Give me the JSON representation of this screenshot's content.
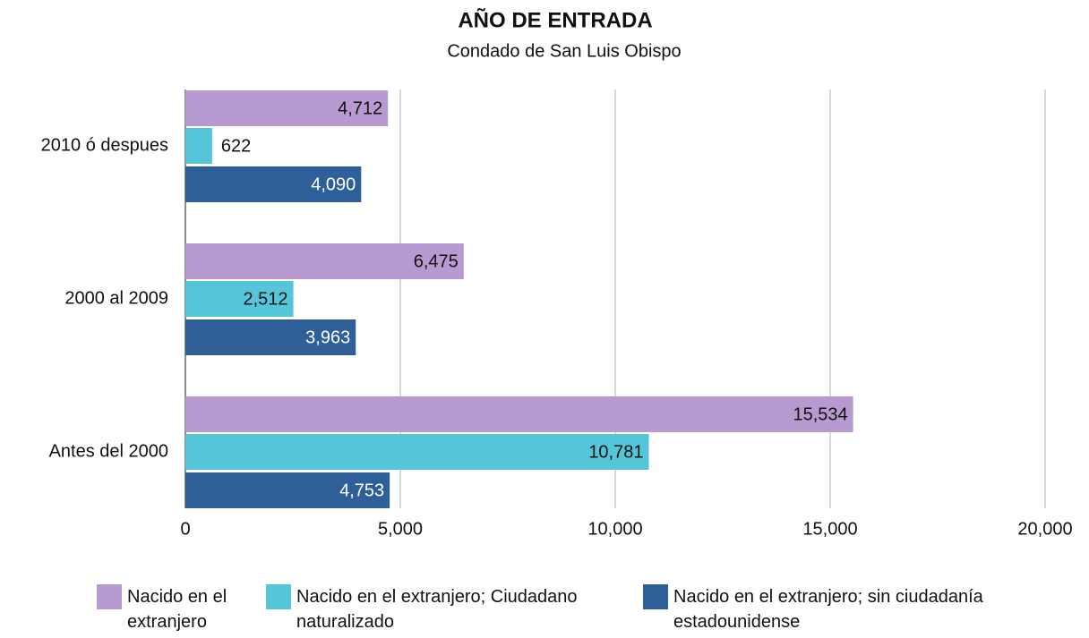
{
  "chart_data": {
    "type": "hbar",
    "title": "AÑO DE ENTRADA",
    "subtitle": "Condado de San Luis Obispo",
    "categories": [
      "2010 ó despues",
      "2000 al 2009",
      "Antes del 2000"
    ],
    "series": [
      {
        "name": "Nacido en el extranjero",
        "color": "#b89ad2",
        "values": [
          4712,
          6475,
          15534
        ],
        "value_labels": [
          "4,712",
          "6,475",
          "15,534"
        ]
      },
      {
        "name": "Nacido en el extranjero; Ciudadano naturalizado",
        "color": "#55c5da",
        "values": [
          622,
          2512,
          10781
        ],
        "value_labels": [
          "622",
          "2,512",
          "10,781"
        ]
      },
      {
        "name": "Nacido en el extranjero; sin ciudadanía estadounidense",
        "color": "#2f5f98",
        "values": [
          4090,
          3963,
          4753
        ],
        "value_labels": [
          "4,090",
          "3,963",
          "4,753"
        ]
      }
    ],
    "xlim": [
      0,
      20000
    ],
    "xticks": [
      0,
      {
        "value": 5000,
        "label": "5,000"
      },
      {
        "value": 10000,
        "label": "10,000"
      },
      {
        "value": 15000,
        "label": "15,000"
      },
      {
        "value": 20000,
        "label": "20,000"
      }
    ],
    "grid": true,
    "legend": "bottom"
  }
}
